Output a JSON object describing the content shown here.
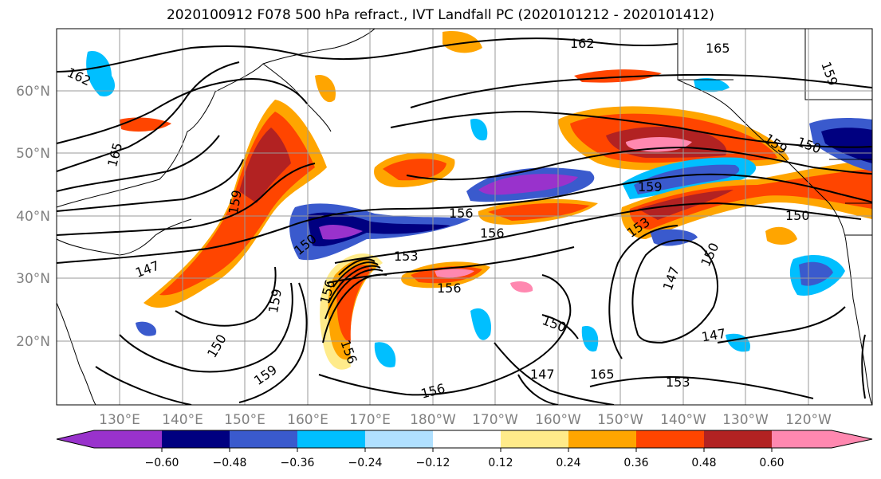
{
  "title": "2020100912 F078 500 hPa refract., IVT Landfall PC (2020101212 - 2020101412)",
  "lat_labels": [
    "60°N",
    "50°N",
    "40°N",
    "30°N",
    "20°N"
  ],
  "lon_labels": [
    "130°E",
    "140°E",
    "150°E",
    "160°E",
    "170°E",
    "180°W",
    "170°W",
    "160°W",
    "150°W",
    "140°W",
    "130°W",
    "120°W"
  ],
  "colorbar": {
    "colors": [
      "#9932CC",
      "#000080",
      "#3A5ACD",
      "#00BFFF",
      "#B0E0FF",
      "#FFFFFF",
      "#FFEB8A",
      "#FFA500",
      "#FF4500",
      "#B22222",
      "#FF88B0"
    ],
    "tick_labels": [
      "−0.60",
      "−0.48",
      "−0.36",
      "−0.24",
      "−0.12",
      "0.12",
      "0.24",
      "0.36",
      "0.48",
      "0.60"
    ]
  },
  "contour_labels": [
    "162",
    "165",
    "159",
    "165",
    "159",
    "156",
    "159",
    "153",
    "156",
    "147",
    "153",
    "150",
    "156",
    "150",
    "147",
    "150",
    "159",
    "150",
    "159",
    "156",
    "147",
    "150",
    "147",
    "153",
    "156",
    "159",
    "150",
    "159",
    "156",
    "165",
    "162"
  ]
}
